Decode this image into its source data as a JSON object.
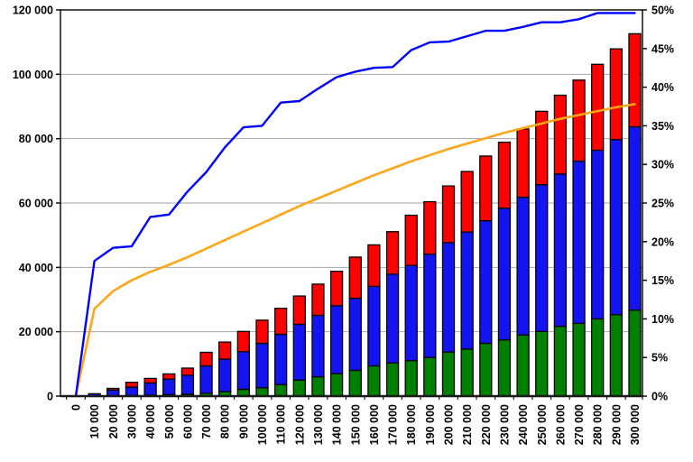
{
  "chart_data": {
    "type": "combo",
    "title": "",
    "categories": [
      0,
      10000,
      20000,
      30000,
      40000,
      50000,
      60000,
      70000,
      80000,
      90000,
      100000,
      110000,
      120000,
      130000,
      140000,
      150000,
      160000,
      170000,
      180000,
      190000,
      200000,
      210000,
      220000,
      230000,
      240000,
      250000,
      260000,
      270000,
      280000,
      290000,
      300000
    ],
    "category_labels": [
      "0",
      "10 000",
      "20 000",
      "30 000",
      "40 000",
      "50 000",
      "60 000",
      "70 000",
      "80 000",
      "90 000",
      "100 000",
      "110 000",
      "120 000",
      "130 000",
      "140 000",
      "150 000",
      "160 000",
      "170 000",
      "180 000",
      "190 000",
      "200 000",
      "210 000",
      "220 000",
      "230 000",
      "240 000",
      "250 000",
      "260 000",
      "270 000",
      "280 000",
      "290 000",
      "300 000"
    ],
    "series": [
      {
        "name": "green-bar-segment",
        "type": "bar",
        "stack": "main",
        "axis": "left",
        "color": "#008000",
        "values": [
          0,
          0,
          100,
          200,
          300,
          450,
          600,
          900,
          1400,
          2100,
          2600,
          3600,
          5000,
          6000,
          7000,
          8000,
          9400,
          10300,
          11000,
          12000,
          13700,
          14600,
          16400,
          17500,
          19000,
          20100,
          21700,
          22600,
          24000,
          25300,
          26700
        ]
      },
      {
        "name": "blue-bar-segment",
        "type": "bar",
        "stack": "main",
        "axis": "left",
        "color": "#1414F0",
        "values": [
          0,
          750,
          1800,
          2600,
          3800,
          4850,
          5900,
          8500,
          10100,
          11700,
          13800,
          15600,
          17300,
          19100,
          21100,
          22400,
          24700,
          27600,
          29600,
          32100,
          34000,
          36400,
          38100,
          40900,
          42800,
          45600,
          47300,
          50400,
          52400,
          54400,
          57000
        ]
      },
      {
        "name": "red-bar-segment",
        "type": "bar",
        "stack": "main",
        "axis": "left",
        "color": "#FF0000",
        "values": [
          0,
          0,
          500,
          1500,
          1400,
          1600,
          2200,
          4200,
          5300,
          6300,
          7200,
          8100,
          8800,
          9700,
          10700,
          12800,
          12900,
          13200,
          15600,
          16300,
          17600,
          18800,
          20100,
          20500,
          21200,
          22800,
          24500,
          25200,
          26700,
          28200,
          28900
        ]
      },
      {
        "name": "stepped-percent-line",
        "type": "line",
        "axis": "right",
        "color": "#0000FF",
        "values": [
          0,
          17.5,
          19.2,
          19.4,
          23.2,
          23.5,
          26.5,
          29,
          32.2,
          34.8,
          35,
          38,
          38.2,
          39.8,
          41.3,
          42,
          42.5,
          42.6,
          44.8,
          45.8,
          45.9,
          46.6,
          47.3,
          47.3,
          47.8,
          48.4,
          48.4,
          48.8,
          49.6,
          49.6,
          49.6
        ]
      },
      {
        "name": "smooth-percent-line",
        "type": "line",
        "axis": "right",
        "color": "#FFA519",
        "values": [
          0,
          11.3,
          13.6,
          15,
          16.1,
          17,
          18,
          19.1,
          20.2,
          21.3,
          22.4,
          23.5,
          24.6,
          25.6,
          26.6,
          27.6,
          28.6,
          29.5,
          30.4,
          31.2,
          32,
          32.7,
          33.4,
          34.1,
          34.7,
          35.3,
          35.9,
          36.4,
          36.9,
          37.4,
          37.8
        ]
      }
    ],
    "left_axis": {
      "min": 0,
      "max": 120000,
      "step": 20000,
      "tick_labels": [
        "0",
        "20 000",
        "40 000",
        "60 000",
        "80 000",
        "100 000",
        "120 000"
      ]
    },
    "right_axis": {
      "min": 0,
      "max": 50,
      "step": 5,
      "tick_labels": [
        "0%",
        "5%",
        "10%",
        "15%",
        "20%",
        "25%",
        "30%",
        "35%",
        "40%",
        "45%",
        "50%"
      ]
    },
    "grid": true,
    "legend": "none",
    "colors": {
      "grid": "#A6A6A6",
      "frame": "#000000",
      "background": "#FFFFFF",
      "bar_outline": "#000000"
    }
  }
}
